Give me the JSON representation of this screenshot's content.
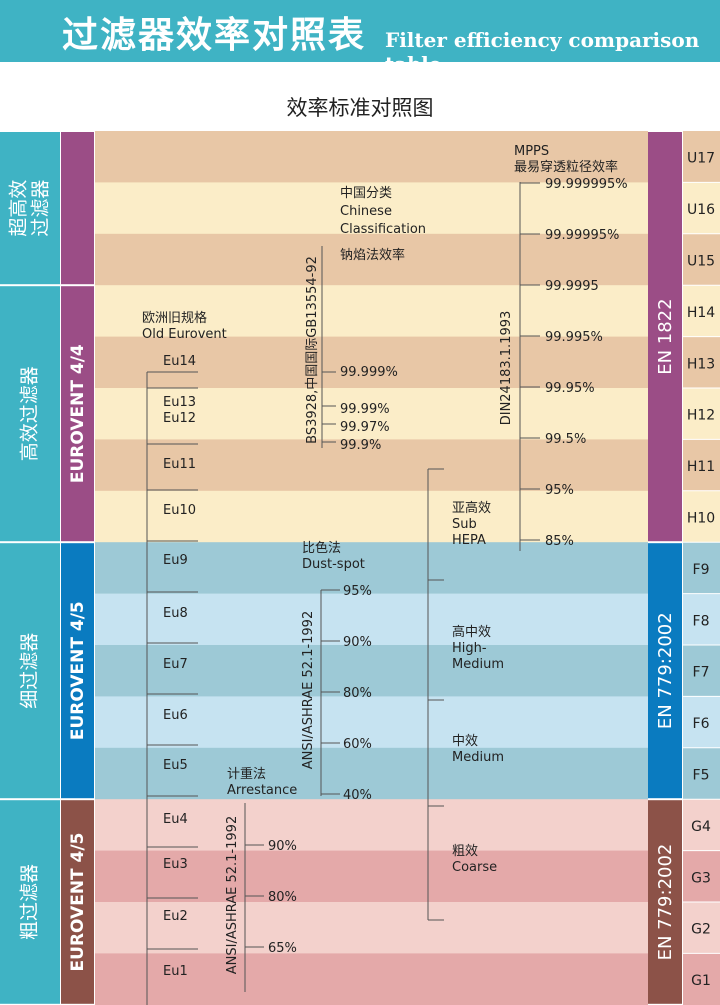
{
  "header": {
    "title_zh": "过滤器效率对照表",
    "title_en": "Filter efficiency comparison table"
  },
  "subtitle": "效率标准对照图",
  "left_categories": [
    {
      "label": "超高效\n过滤器",
      "from": "U17",
      "to": "U15",
      "color": "#3fb3c4"
    },
    {
      "label": "高效过滤器",
      "from": "H14",
      "to": "H10",
      "color": "#3fb3c4"
    },
    {
      "label": "细过滤器",
      "from": "F9",
      "to": "F5",
      "color": "#3fb3c4"
    },
    {
      "label": "粗过滤器",
      "from": "G4",
      "to": "G1",
      "color": "#3fb3c4"
    }
  ],
  "left_standards": [
    {
      "label": "EUROVENT 4/4",
      "from": "H14",
      "to": "H10",
      "color": "#9b4d86"
    },
    {
      "label": "EUROVENT 4/5",
      "from": "F9",
      "to": "F5",
      "color": "#0a7bc0"
    },
    {
      "label": "EUROVENT 4/5",
      "from": "G4",
      "to": "G1",
      "color": "#8c5248"
    }
  ],
  "right_standards": [
    {
      "label": "EN 1822",
      "from": "U17",
      "to": "H10",
      "color": "#9b4d86"
    },
    {
      "label": "EN 779:2002",
      "from": "F9",
      "to": "F5",
      "color": "#0a7bc0"
    },
    {
      "label": "EN 779:2002",
      "from": "G4",
      "to": "G1",
      "color": "#8c5248"
    }
  ],
  "classes": [
    "U17",
    "U16",
    "U15",
    "H14",
    "H13",
    "H12",
    "H11",
    "H10",
    "F9",
    "F8",
    "F7",
    "F6",
    "F5",
    "G4",
    "G3",
    "G2",
    "G1"
  ],
  "row_colors": [
    "#e8c7a6",
    "#fbedc8",
    "#e8c7a6",
    "#fbedc8",
    "#e8c7a6",
    "#fbedc8",
    "#e8c7a6",
    "#fbedc8",
    "#9dc9d6",
    "#c6e3f1",
    "#9dc9d6",
    "#c6e3f1",
    "#9dc9d6",
    "#f3d1cc",
    "#e4a9a9",
    "#f3d1cc",
    "#e4a9a9"
  ],
  "eurovent": {
    "heading": [
      "欧洲旧规格",
      "Old Eurovent"
    ],
    "items": [
      "Eu14",
      "Eu13",
      "Eu12",
      "Eu11",
      "Eu10",
      "Eu9",
      "Eu8",
      "Eu7",
      "Eu6",
      "Eu5",
      "Eu4",
      "Eu3",
      "Eu2",
      "Eu1"
    ]
  },
  "chinese": {
    "heading": [
      "中国分类",
      "Chinese",
      "Classification"
    ],
    "method": "钠焰法效率",
    "standard": "BS3928,中国国际GB13554-92",
    "values": [
      "99.999%",
      "99.99%",
      "99.97%",
      "99.9%"
    ]
  },
  "din": {
    "heading": [
      "MPPS",
      "最易穿透粒径效率"
    ],
    "standard": "DIN24183.1.1993",
    "values": [
      "99.999995%",
      "99.99995%",
      "99.9995",
      "99.995%",
      "99.95%",
      "99.5%",
      "95%",
      "85%"
    ]
  },
  "dustspot": {
    "heading": [
      "比色法",
      "Dust-spot"
    ],
    "standard": "ANSI/ASHRAE 52.1-1992",
    "values": [
      "95%",
      "90%",
      "80%",
      "60%",
      "40%"
    ]
  },
  "arrestance": {
    "heading": [
      "计重法",
      "Arrestance"
    ],
    "standard": "ANSI/ASHRAE 52.1-1992",
    "values": [
      "90%",
      "80%",
      "65%"
    ]
  },
  "groups": [
    {
      "lines": [
        "亚高效",
        "Sub",
        "HEPA"
      ]
    },
    {
      "lines": [
        "高中效",
        "High-",
        "Medium"
      ]
    },
    {
      "lines": [
        "中效",
        "Medium"
      ]
    },
    {
      "lines": [
        "粗效",
        "Coarse"
      ]
    }
  ]
}
